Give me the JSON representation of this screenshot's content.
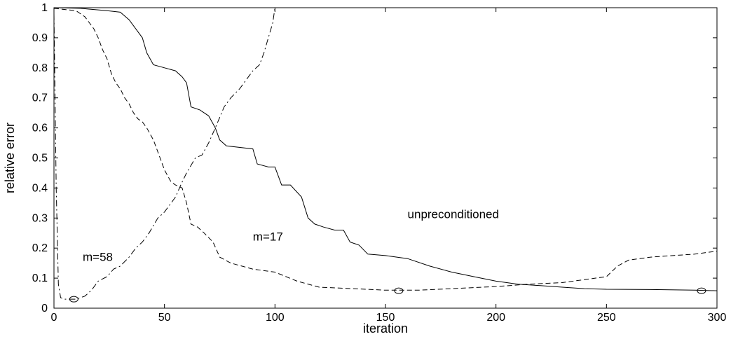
{
  "chart_data": {
    "type": "line",
    "xlabel": "iteration",
    "ylabel": "relative error",
    "xlim": [
      0,
      300
    ],
    "ylim": [
      0,
      1
    ],
    "xticks": [
      0,
      50,
      100,
      150,
      200,
      250,
      300
    ],
    "yticks": [
      0,
      0.1,
      0.2,
      0.3,
      0.4,
      0.5,
      0.6,
      0.7,
      0.8,
      0.9,
      1
    ],
    "grid": false,
    "legend": "none",
    "series": [
      {
        "name": "unpreconditioned",
        "line_style": "solid",
        "points": [
          [
            0,
            1.0
          ],
          [
            12,
            0.998
          ],
          [
            24,
            0.99
          ],
          [
            30,
            0.985
          ],
          [
            34,
            0.96
          ],
          [
            38,
            0.92
          ],
          [
            40,
            0.9
          ],
          [
            42,
            0.85
          ],
          [
            45,
            0.81
          ],
          [
            50,
            0.8
          ],
          [
            55,
            0.79
          ],
          [
            58,
            0.77
          ],
          [
            60,
            0.75
          ],
          [
            62,
            0.67
          ],
          [
            66,
            0.66
          ],
          [
            70,
            0.64
          ],
          [
            73,
            0.6
          ],
          [
            75,
            0.56
          ],
          [
            78,
            0.54
          ],
          [
            90,
            0.53
          ],
          [
            92,
            0.48
          ],
          [
            97,
            0.47
          ],
          [
            100,
            0.47
          ],
          [
            103,
            0.41
          ],
          [
            107,
            0.41
          ],
          [
            112,
            0.37
          ],
          [
            115,
            0.3
          ],
          [
            118,
            0.28
          ],
          [
            122,
            0.27
          ],
          [
            127,
            0.26
          ],
          [
            131,
            0.26
          ],
          [
            134,
            0.22
          ],
          [
            138,
            0.21
          ],
          [
            142,
            0.18
          ],
          [
            150,
            0.175
          ],
          [
            160,
            0.165
          ],
          [
            170,
            0.14
          ],
          [
            180,
            0.12
          ],
          [
            190,
            0.105
          ],
          [
            200,
            0.09
          ],
          [
            210,
            0.08
          ],
          [
            220,
            0.075
          ],
          [
            230,
            0.07
          ],
          [
            240,
            0.065
          ],
          [
            250,
            0.063
          ],
          [
            270,
            0.062
          ],
          [
            290,
            0.06
          ],
          [
            300,
            0.058
          ]
        ]
      },
      {
        "name": "m=17",
        "line_style": "dashed",
        "points": [
          [
            0,
            0.998
          ],
          [
            10,
            0.99
          ],
          [
            14,
            0.97
          ],
          [
            18,
            0.93
          ],
          [
            20,
            0.9
          ],
          [
            22,
            0.86
          ],
          [
            24,
            0.83
          ],
          [
            26,
            0.78
          ],
          [
            28,
            0.75
          ],
          [
            30,
            0.73
          ],
          [
            32,
            0.7
          ],
          [
            34,
            0.68
          ],
          [
            36,
            0.65
          ],
          [
            38,
            0.63
          ],
          [
            40,
            0.62
          ],
          [
            42,
            0.6
          ],
          [
            45,
            0.56
          ],
          [
            48,
            0.5
          ],
          [
            50,
            0.46
          ],
          [
            53,
            0.42
          ],
          [
            55,
            0.41
          ],
          [
            58,
            0.4
          ],
          [
            60,
            0.35
          ],
          [
            62,
            0.28
          ],
          [
            65,
            0.27
          ],
          [
            68,
            0.25
          ],
          [
            72,
            0.22
          ],
          [
            75,
            0.17
          ],
          [
            80,
            0.15
          ],
          [
            85,
            0.14
          ],
          [
            90,
            0.13
          ],
          [
            100,
            0.12
          ],
          [
            110,
            0.09
          ],
          [
            120,
            0.07
          ],
          [
            135,
            0.065
          ],
          [
            150,
            0.06
          ],
          [
            165,
            0.06
          ],
          [
            180,
            0.065
          ],
          [
            200,
            0.072
          ],
          [
            215,
            0.08
          ],
          [
            230,
            0.085
          ],
          [
            240,
            0.095
          ],
          [
            250,
            0.105
          ],
          [
            255,
            0.14
          ],
          [
            260,
            0.16
          ],
          [
            270,
            0.17
          ],
          [
            280,
            0.175
          ],
          [
            290,
            0.18
          ],
          [
            300,
            0.19
          ]
        ],
        "markers": [
          [
            156,
            0.058
          ]
        ]
      },
      {
        "name": "m=58",
        "line_style": "dash-dot",
        "points": [
          [
            0,
            0.98
          ],
          [
            1,
            0.4
          ],
          [
            2,
            0.08
          ],
          [
            3,
            0.035
          ],
          [
            5,
            0.03
          ],
          [
            10,
            0.03
          ],
          [
            14,
            0.04
          ],
          [
            17,
            0.06
          ],
          [
            20,
            0.09
          ],
          [
            24,
            0.105
          ],
          [
            27,
            0.13
          ],
          [
            30,
            0.14
          ],
          [
            34,
            0.17
          ],
          [
            37,
            0.2
          ],
          [
            40,
            0.22
          ],
          [
            43,
            0.25
          ],
          [
            47,
            0.3
          ],
          [
            50,
            0.32
          ],
          [
            55,
            0.37
          ],
          [
            58,
            0.42
          ],
          [
            60,
            0.45
          ],
          [
            64,
            0.5
          ],
          [
            67,
            0.51
          ],
          [
            70,
            0.55
          ],
          [
            73,
            0.6
          ],
          [
            77,
            0.67
          ],
          [
            80,
            0.7
          ],
          [
            84,
            0.73
          ],
          [
            87,
            0.76
          ],
          [
            90,
            0.79
          ],
          [
            93,
            0.81
          ],
          [
            95,
            0.85
          ],
          [
            97,
            0.9
          ],
          [
            99,
            0.95
          ],
          [
            100,
            1.0
          ]
        ],
        "markers": [
          [
            9,
            0.03
          ]
        ]
      }
    ],
    "extra_markers": [
      [
        293,
        0.058
      ]
    ],
    "annotations": [
      {
        "text": "unpreconditioned",
        "x": 160,
        "y": 0.3
      },
      {
        "text": "m=17",
        "x": 90,
        "y": 0.225
      },
      {
        "text": "m=58",
        "x": 13,
        "y": 0.157
      }
    ]
  }
}
